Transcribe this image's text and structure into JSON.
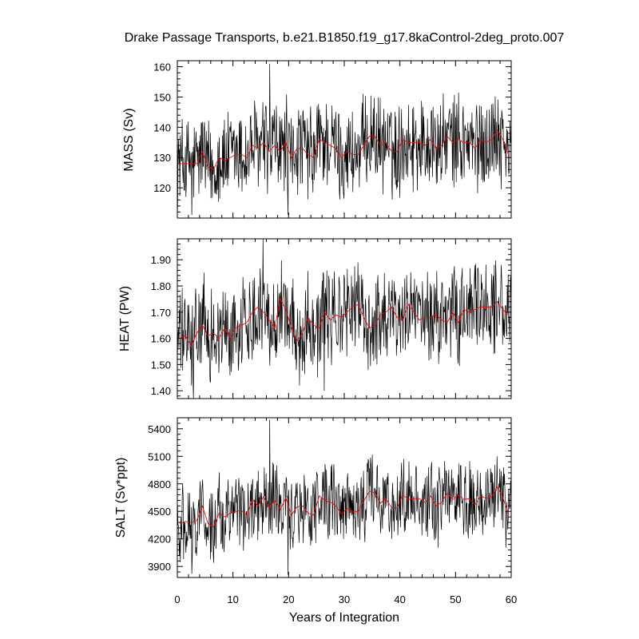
{
  "chart_data": {
    "type": "line",
    "title": "Drake Passage Transports, b.e21.B1850.f19_g17.8kaControl-2deg_proto.007",
    "xlabel": "Years of Integration",
    "xlim": [
      0,
      60
    ],
    "xticks": [
      0,
      10,
      20,
      30,
      40,
      50,
      60
    ],
    "colors": {
      "monthly": "#000000",
      "annual": "#ff0000"
    },
    "panels": [
      {
        "ylabel": "MASS (Sv)",
        "ylim": [
          110,
          162
        ],
        "yticks": [
          120,
          130,
          140,
          150,
          160
        ],
        "tick_decimals": 0,
        "annual_x": [
          0.5,
          1.5,
          2.5,
          3.5,
          4.5,
          5.5,
          6.5,
          7.5,
          8.5,
          9.5,
          10.5,
          11.5,
          12.5,
          13.5,
          14.5,
          15.5,
          16.5,
          17.5,
          18.5,
          19.5,
          20.5,
          21.5,
          22.5,
          23.5,
          24.5,
          25.5,
          26.5,
          27.5,
          28.5,
          29.5,
          30.5,
          31.5,
          32.5,
          33.5,
          34.5,
          35.5,
          36.5,
          37.5,
          38.5,
          39.5,
          40.5,
          41.5,
          42.5,
          43.5,
          44.5,
          45.5,
          46.5,
          47.5,
          48.5,
          49.5,
          50.5,
          51.5,
          52.5,
          53.5,
          54.5,
          55.5,
          56.5,
          57.5,
          58.5,
          59.5
        ],
        "annual": [
          128,
          128,
          128,
          128,
          132,
          127,
          126,
          130,
          129,
          130,
          131,
          131,
          130,
          134,
          133,
          135,
          132,
          134,
          132,
          135,
          130,
          133,
          133,
          131,
          130,
          136,
          135,
          134,
          133,
          130,
          132,
          131,
          131,
          134,
          137,
          137,
          134,
          135,
          132,
          132,
          136,
          135,
          135,
          135,
          134,
          136,
          133,
          134,
          137,
          135,
          136,
          135,
          135,
          133,
          136,
          135,
          136,
          139,
          136,
          131
        ],
        "monthly_range": [
          113,
          157
        ],
        "spikes": [
          [
            16.6,
            161
          ],
          [
            19.9,
            111
          ],
          [
            2.6,
            111
          ]
        ]
      },
      {
        "ylabel": "HEAT (PW)",
        "ylim": [
          1.37,
          1.98
        ],
        "yticks": [
          1.4,
          1.5,
          1.6,
          1.7,
          1.8,
          1.9
        ],
        "tick_decimals": 2,
        "annual_x": [
          0.5,
          1.5,
          2.5,
          3.5,
          4.5,
          5.5,
          6.5,
          7.5,
          8.5,
          9.5,
          10.5,
          11.5,
          12.5,
          13.5,
          14.5,
          15.5,
          16.5,
          17.5,
          18.5,
          19.5,
          20.5,
          21.5,
          22.5,
          23.5,
          24.5,
          25.5,
          26.5,
          27.5,
          28.5,
          29.5,
          30.5,
          31.5,
          32.5,
          33.5,
          34.5,
          35.5,
          36.5,
          37.5,
          38.5,
          39.5,
          40.5,
          41.5,
          42.5,
          43.5,
          44.5,
          45.5,
          46.5,
          47.5,
          48.5,
          49.5,
          50.5,
          51.5,
          52.5,
          53.5,
          54.5,
          55.5,
          56.5,
          57.5,
          58.5,
          59.5
        ],
        "annual": [
          1.6,
          1.61,
          1.57,
          1.62,
          1.65,
          1.61,
          1.62,
          1.6,
          1.64,
          1.6,
          1.64,
          1.65,
          1.66,
          1.7,
          1.72,
          1.7,
          1.67,
          1.64,
          1.75,
          1.71,
          1.64,
          1.59,
          1.62,
          1.68,
          1.65,
          1.64,
          1.7,
          1.67,
          1.69,
          1.68,
          1.7,
          1.72,
          1.73,
          1.68,
          1.64,
          1.65,
          1.69,
          1.7,
          1.72,
          1.68,
          1.67,
          1.73,
          1.7,
          1.67,
          1.68,
          1.68,
          1.69,
          1.67,
          1.66,
          1.7,
          1.66,
          1.71,
          1.7,
          1.71,
          1.72,
          1.72,
          1.72,
          1.74,
          1.71,
          1.69
        ],
        "monthly_range": [
          1.42,
          1.93
        ],
        "spikes": [
          [
            15.4,
            1.98
          ],
          [
            2.9,
            1.37
          ],
          [
            26.4,
            1.4
          ]
        ]
      },
      {
        "ylabel": "SALT (Sv*ppt)",
        "ylim": [
          3780,
          5520
        ],
        "yticks": [
          3900,
          4200,
          4500,
          4800,
          5100,
          5400
        ],
        "tick_decimals": 0,
        "annual_x": [
          0.5,
          1.5,
          2.5,
          3.5,
          4.5,
          5.5,
          6.5,
          7.5,
          8.5,
          9.5,
          10.5,
          11.5,
          12.5,
          13.5,
          14.5,
          15.5,
          16.5,
          17.5,
          18.5,
          19.5,
          20.5,
          21.5,
          22.5,
          23.5,
          24.5,
          25.5,
          26.5,
          27.5,
          28.5,
          29.5,
          30.5,
          31.5,
          32.5,
          33.5,
          34.5,
          35.5,
          36.5,
          37.5,
          38.5,
          39.5,
          40.5,
          41.5,
          42.5,
          43.5,
          44.5,
          45.5,
          46.5,
          47.5,
          48.5,
          49.5,
          50.5,
          51.5,
          52.5,
          53.5,
          54.5,
          55.5,
          56.5,
          57.5,
          58.5,
          59.5
        ],
        "annual": [
          4370,
          4390,
          4380,
          4400,
          4560,
          4370,
          4330,
          4480,
          4440,
          4480,
          4500,
          4510,
          4460,
          4630,
          4560,
          4660,
          4540,
          4620,
          4520,
          4650,
          4460,
          4550,
          4560,
          4480,
          4460,
          4670,
          4620,
          4600,
          4560,
          4470,
          4530,
          4500,
          4500,
          4610,
          4720,
          4700,
          4590,
          4640,
          4540,
          4540,
          4680,
          4630,
          4640,
          4640,
          4600,
          4670,
          4560,
          4600,
          4700,
          4630,
          4680,
          4630,
          4640,
          4570,
          4670,
          4640,
          4660,
          4770,
          4650,
          4480
        ],
        "monthly_range": [
          3940,
          5120
        ],
        "spikes": [
          [
            16.6,
            5500
          ],
          [
            19.9,
            3810
          ],
          [
            2.6,
            3820
          ]
        ]
      }
    ]
  }
}
